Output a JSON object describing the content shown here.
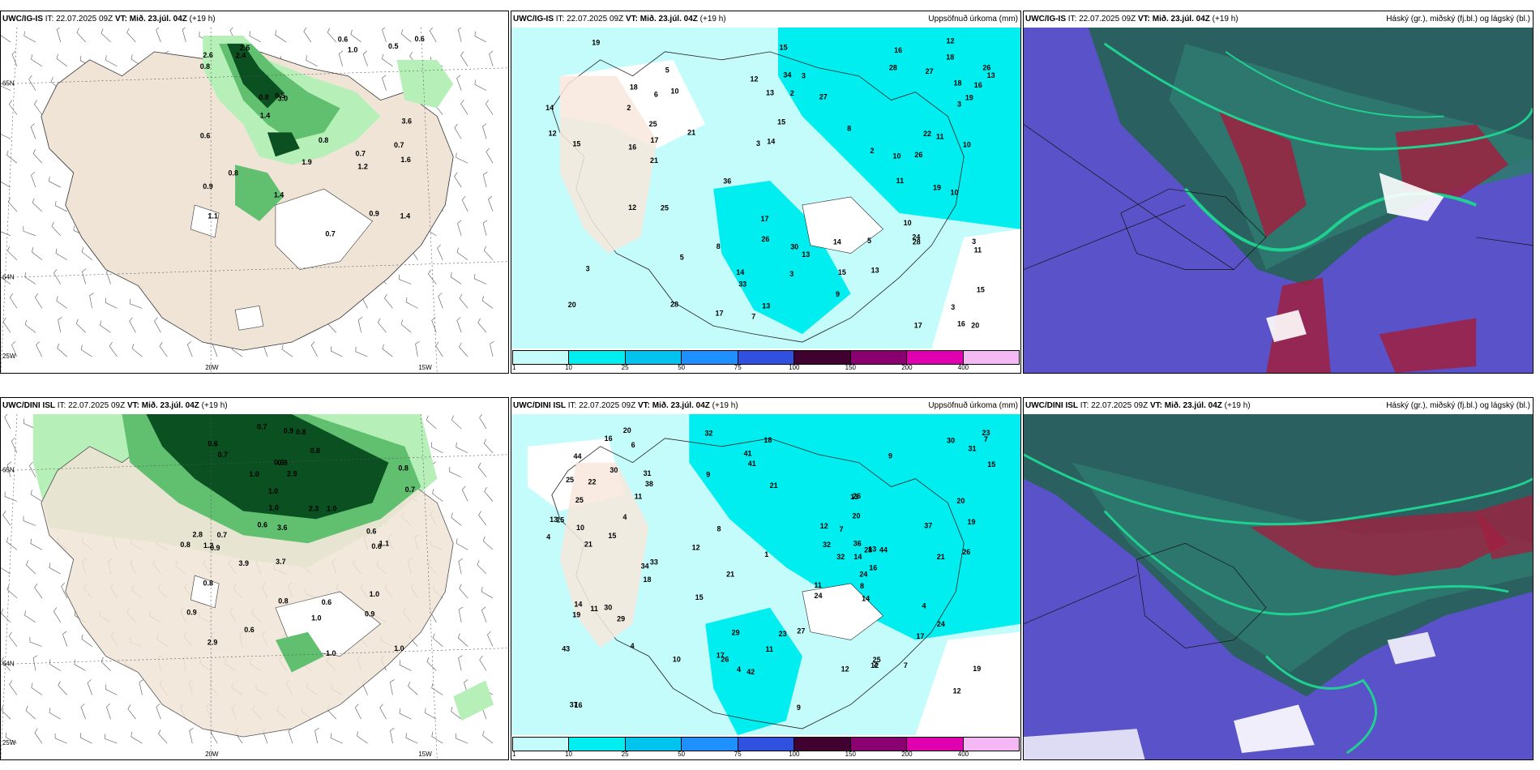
{
  "header_common": {
    "it_label": "IT:",
    "it_value": "22.07.2025 09Z",
    "vt_label": "VT:",
    "vt_value": "Mið. 23.júl. 04Z",
    "lead": "(+19 h)"
  },
  "panels": [
    {
      "model": "UWC/IG-IS",
      "right_title": "",
      "coords": {
        "lat_top": "65N",
        "lat_bottom": "64N",
        "lon_left": "25W",
        "lon_mid": "20W",
        "lon_right": "15W"
      },
      "values": [
        "0.7",
        "0.7",
        "1.1",
        "2.6",
        "3.0",
        "0.9",
        "0.9",
        "1.0",
        "0.8",
        "0.7",
        "0.8",
        "0.6",
        "2.6",
        "1.4",
        "1.4",
        "3.6",
        "1.9",
        "0.8",
        "0.5",
        "0.8",
        "0.6",
        "0.5",
        "1.4",
        "1.6",
        "0.6",
        "2.4",
        "1.2"
      ]
    },
    {
      "model": "UWC/IG-IS",
      "right_title": "Uppsöfnuð úrkoma (mm)",
      "values": [
        "12",
        "8",
        "7",
        "10",
        "5",
        "5",
        "12",
        "10",
        "13",
        "34",
        "15",
        "16",
        "21",
        "16",
        "16",
        "19",
        "3",
        "36",
        "15",
        "10",
        "28",
        "27",
        "2",
        "3",
        "3",
        "11",
        "26",
        "33",
        "20",
        "17",
        "17",
        "14",
        "19",
        "13",
        "18",
        "17",
        "25",
        "30",
        "27",
        "3",
        "2",
        "3",
        "14",
        "11",
        "18",
        "14",
        "15",
        "6",
        "12",
        "11",
        "10",
        "10",
        "13",
        "21",
        "15",
        "13",
        "2",
        "15",
        "19",
        "18",
        "20",
        "28",
        "26",
        "25",
        "26",
        "28",
        "22",
        "16",
        "8",
        "17",
        "12",
        "9",
        "5",
        "3",
        "3",
        "14",
        "24",
        "13"
      ]
    },
    {
      "model": "UWC/IG-IS",
      "right_title": "Háský (gr.), miðský (fj.bl.) og lágský (bl.)"
    },
    {
      "model": "UWC/DINI ISL",
      "right_title": "",
      "coords": {
        "lat_top": "65N",
        "lat_bottom": "64N",
        "lon_left": "25W",
        "lon_mid": "20W",
        "lon_right": "15W"
      },
      "values": [
        "0.7",
        "0.6",
        "0.7",
        "0.7",
        "0.8",
        "3.9",
        "1.0",
        "0.9",
        "1.0",
        "3.6",
        "3.7",
        "0.6",
        "0.9",
        "2.3",
        "2.9",
        "1.0",
        "0.6",
        "2.8",
        "0.6",
        "2.9",
        "0.8",
        "0.9",
        "1.0",
        "0.8",
        "0.6",
        "0.9",
        "0.8",
        "1.2",
        "0.8",
        "1.0",
        "0.9",
        "0.7",
        "1.0",
        "1.0",
        "0.8",
        "1.1",
        "0.6",
        "1.0",
        "0.6"
      ]
    },
    {
      "model": "UWC/DINI ISL",
      "right_title": "Uppsöfnuð úrkoma (mm)",
      "values": [
        "12",
        "19",
        "21",
        "13",
        "15",
        "12",
        "41",
        "15",
        "19",
        "15",
        "17",
        "18",
        "7",
        "21",
        "20",
        "2",
        "6",
        "21",
        "20",
        "23",
        "26",
        "24",
        "25",
        "27",
        "26",
        "29",
        "16",
        "4",
        "30",
        "34",
        "26",
        "23",
        "32",
        "37",
        "25",
        "1",
        "37",
        "32",
        "31",
        "29",
        "30",
        "25",
        "21",
        "4",
        "4",
        "4",
        "22",
        "24",
        "44",
        "38",
        "36",
        "43",
        "9",
        "9",
        "41",
        "42",
        "20",
        "32",
        "31",
        "33",
        "30",
        "11",
        "10",
        "12",
        "13",
        "7",
        "11",
        "16",
        "14",
        "13",
        "44",
        "28",
        "24",
        "12",
        "14",
        "11",
        "19",
        "10",
        "8",
        "18",
        "16",
        "14",
        "15",
        "17",
        "7",
        "8",
        "9",
        "4",
        "11",
        "12"
      ]
    },
    {
      "model": "UWC/DINI ISL",
      "right_title": "Háský (gr.), miðský (fj.bl.) og lágský (bl.)"
    }
  ],
  "colorbar": {
    "labels": [
      "1",
      "10",
      "25",
      "50",
      "75",
      "100",
      "150",
      "200",
      "400"
    ],
    "colors": [
      "#c4fbfb",
      "#00eef0",
      "#00c3ee",
      "#1e90ff",
      "#3050e0",
      "#400030",
      "#8a0070",
      "#e000b0",
      "#f4b8f4"
    ]
  },
  "map_colors": {
    "land": "#f0e4d6",
    "precip_light": "#b6f0b8",
    "precip_mid": "#60c070",
    "precip_dark": "#0a5020",
    "rain_light": "#c4fbfb",
    "rain_mid": "#00eef0",
    "rain_dark": "#00c3ee",
    "cloud_low": "#5a52c8",
    "cloud_mid": "#2a6060",
    "cloud_high": "#20d090",
    "cloud_red": "#a02040"
  }
}
